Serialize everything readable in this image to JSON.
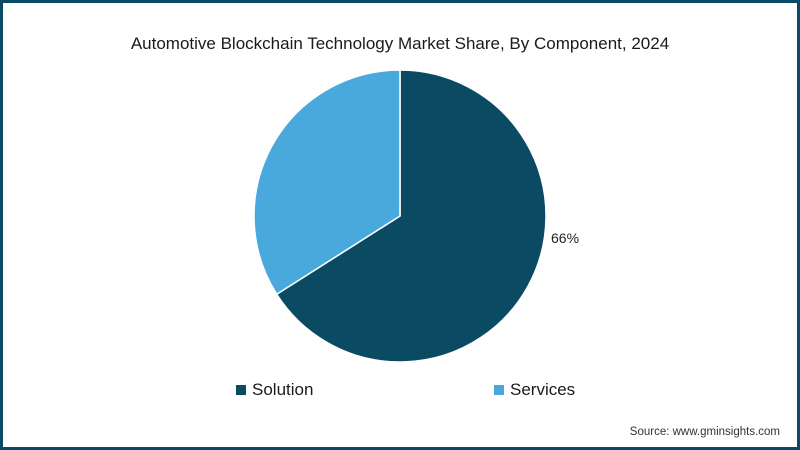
{
  "chart_data": {
    "type": "pie",
    "title": "Automotive Blockchain Technology Market Share, By Component, 2024",
    "categories": [
      "Solution",
      "Services"
    ],
    "values": [
      66,
      34
    ],
    "colors": [
      "#0b4a63",
      "#49a9dd"
    ],
    "data_labels": [
      "66%",
      ""
    ],
    "start_angle_deg": 0,
    "direction": "clockwise",
    "legend": {
      "position": "bottom",
      "entries": [
        "Solution",
        "Services"
      ]
    }
  },
  "title": "Automotive Blockchain Technology Market Share, By Component, 2024",
  "labels": {
    "solution_pct": "66%"
  },
  "legend": {
    "items": [
      {
        "label": "Solution",
        "color": "#0b4a63"
      },
      {
        "label": "Services",
        "color": "#49a9dd"
      }
    ]
  },
  "source": "Source: www.gminsights.com",
  "colors": {
    "border": "#0b4a66",
    "solution": "#0b4a63",
    "services": "#49a9dd"
  }
}
